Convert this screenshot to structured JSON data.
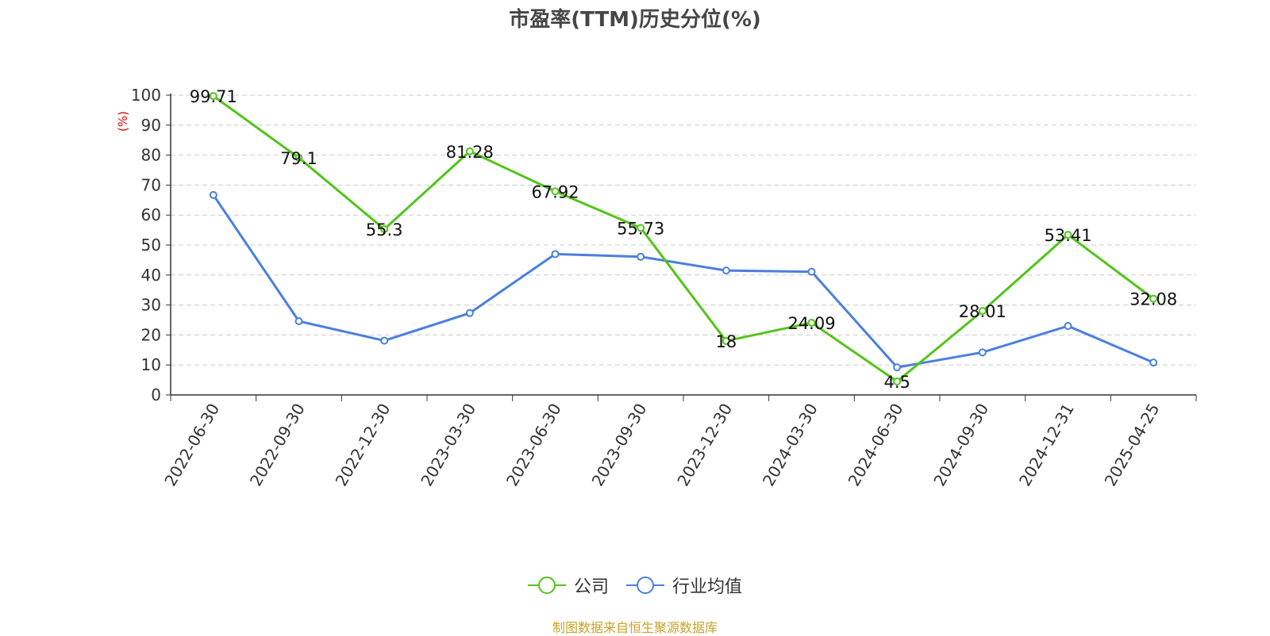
{
  "chart_data": {
    "type": "line",
    "title": "市盈率(TTM)历史分位(%)",
    "ylabel": "(%)",
    "xlabel": "",
    "ylim": [
      0,
      100
    ],
    "yticks": [
      0,
      10,
      20,
      30,
      40,
      50,
      60,
      70,
      80,
      90,
      100
    ],
    "grid": "dashed horizontal",
    "legend_position": "bottom-center",
    "categories": [
      "2022-06-30",
      "2022-09-30",
      "2022-12-30",
      "2023-03-30",
      "2023-06-30",
      "2023-09-30",
      "2023-12-30",
      "2024-03-30",
      "2024-06-30",
      "2024-09-30",
      "2024-12-31",
      "2025-04-25"
    ],
    "series": [
      {
        "name": "公司",
        "color": "#52c41a",
        "show_labels": true,
        "values": [
          99.71,
          79.1,
          55.3,
          81.28,
          67.92,
          55.73,
          18,
          24.09,
          4.5,
          28.01,
          53.41,
          32.08
        ]
      },
      {
        "name": "行业均值",
        "color": "#4a7fe0",
        "show_labels": false,
        "values": [
          66.7,
          24.6,
          18.1,
          27.3,
          47.0,
          46.1,
          41.5,
          41.1,
          9.2,
          14.2,
          23.0,
          10.8
        ]
      }
    ]
  },
  "footer": {
    "source": "制图数据来自恒生聚源数据库"
  },
  "colors": {
    "source": "#c9a227",
    "ylabel": "#e00000"
  }
}
